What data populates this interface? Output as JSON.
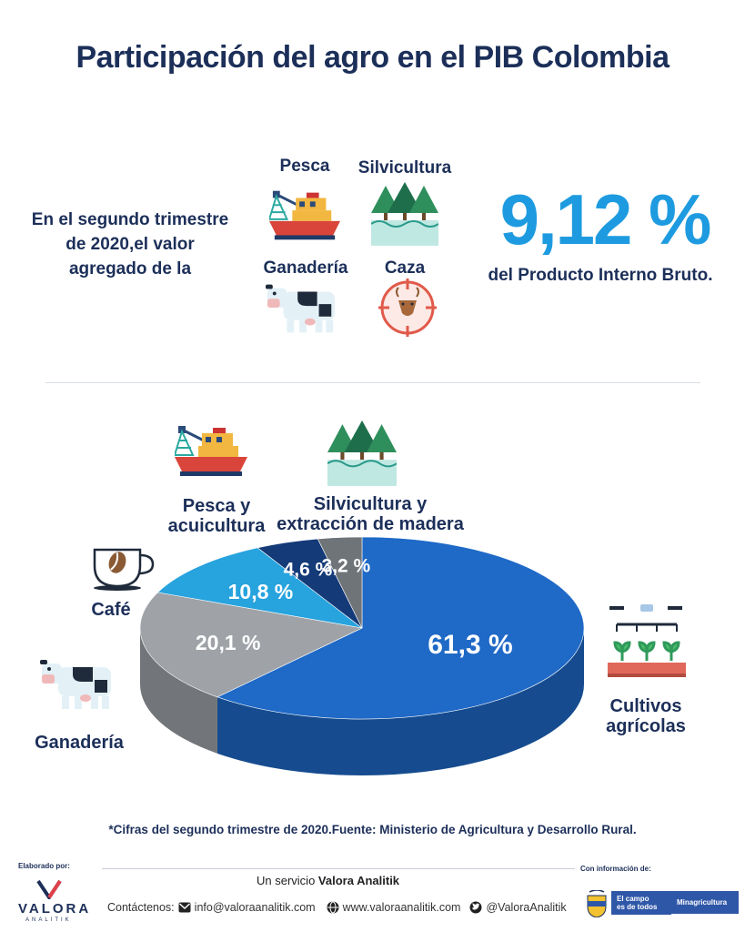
{
  "header": {
    "title": "Participación del agro en el PIB Colombia"
  },
  "intro": {
    "lines": [
      "En el segundo trimestre",
      "de 2020,el valor",
      "agregado de la"
    ],
    "icon_labels": {
      "pesca": "Pesca",
      "silvicultura": "Silvicultura",
      "ganaderia": "Ganadería",
      "caza": "Caza"
    },
    "big_value": "9,12 %",
    "value_text": "del Producto Interno Bruto."
  },
  "chart_data": {
    "type": "pie",
    "title": "",
    "slices": [
      {
        "label": "Cultivos agrícolas",
        "value": 61.3,
        "value_label": "61,3 %",
        "color": "#1f69c7"
      },
      {
        "label": "Ganadería",
        "value": 20.1,
        "value_label": "20,1 %",
        "color": "#9fa3a8"
      },
      {
        "label": "Café",
        "value": 10.8,
        "value_label": "10,8 %",
        "color": "#27a3de"
      },
      {
        "label": "Pesca y acuicultura",
        "value": 4.6,
        "value_label": "4,6 %",
        "color": "#143a78"
      },
      {
        "label": "Silvicultura y extracción de madera",
        "value": 3.2,
        "value_label": "3,2 %",
        "color": "#6f7479"
      }
    ],
    "category_labels": {
      "cultivos": [
        "Cultivos",
        "agrícolas"
      ],
      "ganaderia": [
        "Ganadería"
      ],
      "cafe": [
        "Café"
      ],
      "pesca": [
        "Pesca y",
        "acuicultura"
      ],
      "silvicultura": [
        "Silvicultura y",
        "extracción de madera"
      ]
    }
  },
  "footnote": "*Cifras del segundo trimestre de 2020.Fuente: Ministerio de Agricultura y Desarrollo Rural.",
  "footer": {
    "made_by_label": "Elaborado por:",
    "logo_text": "VALORA",
    "logo_sub": "ANALITIK",
    "service_prefix": "Un servicio ",
    "service_brand": "Valora Analitik",
    "contacts_label": "Contáctenos:",
    "email": "info@valoraanalitik.com",
    "website": "www.valoraanalitik.com",
    "twitter": "@ValoraAnalitik",
    "info_label": "Con información de:",
    "partner1_line1": "El campo",
    "partner1_line2": "es de todos",
    "partner2": "Minagricultura"
  }
}
